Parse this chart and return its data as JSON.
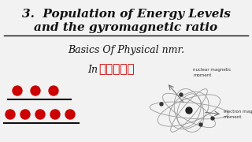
{
  "bg_color": "#f2f2f2",
  "title_line1": "3.  Population of Energy Levels",
  "title_line2": "and the gyromagnetic ratio",
  "subtitle": "Basics Of Physical nmr.",
  "in_text": "In",
  "tamil_text": "தமிழ்",
  "title_color": "#111111",
  "subtitle_color": "#111111",
  "tamil_color": "#cc0000",
  "line_color": "#111111",
  "dot_color": "#cc0000",
  "dot_line_color": "#111111",
  "row1_dots": 3,
  "row2_dots": 5,
  "nuclear_label": "nuclear magnetic\nmoment",
  "electron_label": "electron magnetic\nmoment",
  "orbit_color": "#999999",
  "arrow_color": "#666666"
}
